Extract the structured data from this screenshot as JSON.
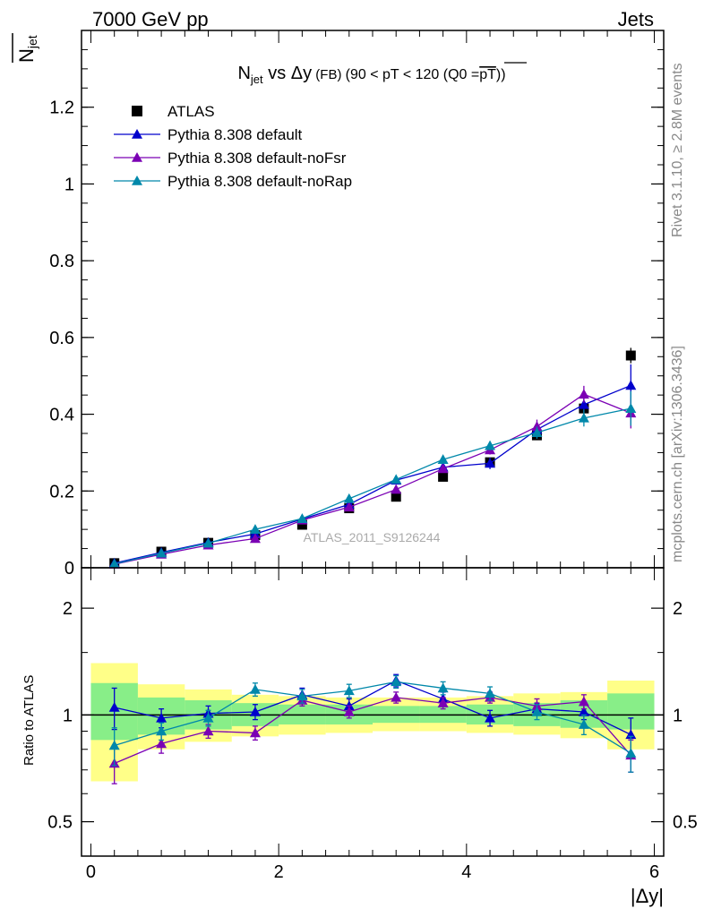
{
  "header": {
    "energy_label": "7000 GeV pp",
    "process_label": "Jets",
    "side_rivet": "Rivet 3.1.10, ≥ 2.8M events",
    "side_source": "mcplots.cern.ch [arXiv:1306.3436]",
    "watermark": "ATLAS_2011_S9126244"
  },
  "chart_data": [
    {
      "type": "scatter",
      "panel": "main",
      "title_parts": {
        "n": "N",
        "jet_sub": "jet",
        "vs": " vs Δy",
        "fb": " (FB) ",
        "cut": "(90 < pT < 120 (Q0 =",
        "pt": "pT",
        "close": "))"
      },
      "ylabel_parts": {
        "n": "N",
        "jet_sub": "jet"
      },
      "ylim": [
        0,
        1.4
      ],
      "yticks": [
        "0",
        "0.2",
        "0.4",
        "0.6",
        "0.8",
        "1",
        "1.2"
      ],
      "x": [
        0.25,
        0.75,
        1.25,
        1.75,
        2.25,
        2.75,
        3.25,
        3.75,
        4.25,
        4.75,
        5.25,
        5.75
      ],
      "xlim": [
        -0.1,
        6.1
      ],
      "legend_position": "top-left",
      "series": [
        {
          "name": "ATLAS",
          "color": "#000000",
          "marker": "square",
          "values": [
            0.012,
            0.042,
            0.065,
            0.085,
            0.112,
            0.155,
            0.185,
            0.237,
            0.275,
            0.345,
            0.415,
            0.553
          ],
          "errors": [
            0.001,
            0.002,
            0.003,
            0.004,
            0.004,
            0.005,
            0.006,
            0.008,
            0.01,
            0.012,
            0.015,
            0.02
          ]
        },
        {
          "name": "Pythia 8.308 default",
          "color": "#0000cc",
          "marker": "triangle",
          "values": [
            0.012,
            0.04,
            0.066,
            0.088,
            0.127,
            0.165,
            0.228,
            0.262,
            0.272,
            0.36,
            0.425,
            0.475
          ],
          "errors": [
            0.001,
            0.003,
            0.004,
            0.005,
            0.005,
            0.007,
            0.007,
            0.01,
            0.015,
            0.018,
            0.02,
            0.055
          ]
        },
        {
          "name": "Pythia 8.308 default-noFsr",
          "color": "#7b00b4",
          "marker": "triangle",
          "values": [
            0.009,
            0.035,
            0.059,
            0.076,
            0.124,
            0.158,
            0.204,
            0.258,
            0.307,
            0.368,
            0.452,
            0.403
          ],
          "errors": [
            0.001,
            0.003,
            0.004,
            0.005,
            0.005,
            0.006,
            0.007,
            0.009,
            0.012,
            0.018,
            0.022,
            0.04
          ]
        },
        {
          "name": "Pythia 8.308 default-noRap",
          "color": "#0088aa",
          "marker": "triangle",
          "values": [
            0.01,
            0.038,
            0.064,
            0.1,
            0.128,
            0.18,
            0.23,
            0.282,
            0.318,
            0.352,
            0.39,
            0.415
          ],
          "errors": [
            0.001,
            0.003,
            0.004,
            0.004,
            0.005,
            0.006,
            0.007,
            0.01,
            0.012,
            0.016,
            0.022,
            0.045
          ]
        }
      ]
    },
    {
      "type": "scatter",
      "panel": "ratio",
      "ylabel": "Ratio to ATLAS",
      "xlabel": "|Δy|",
      "log_y": true,
      "ylim": [
        0.4,
        2.6
      ],
      "yticks": [
        "0.5",
        "1",
        "2"
      ],
      "xticks": [
        "0",
        "2",
        "4",
        "6"
      ],
      "x": [
        0.25,
        0.75,
        1.25,
        1.75,
        2.25,
        2.75,
        3.25,
        3.75,
        4.25,
        4.75,
        5.25,
        5.75
      ],
      "band_edges": [
        0,
        0.5,
        1,
        1.5,
        2,
        2.5,
        3,
        3.5,
        4,
        4.5,
        5,
        5.5,
        6
      ],
      "band_yellow": [
        [
          0.65,
          1.4
        ],
        [
          0.8,
          1.22
        ],
        [
          0.84,
          1.18
        ],
        [
          0.87,
          1.14
        ],
        [
          0.88,
          1.13
        ],
        [
          0.89,
          1.12
        ],
        [
          0.9,
          1.12
        ],
        [
          0.9,
          1.12
        ],
        [
          0.89,
          1.13
        ],
        [
          0.88,
          1.15
        ],
        [
          0.86,
          1.16
        ],
        [
          0.8,
          1.25
        ]
      ],
      "band_green": [
        [
          0.85,
          1.23
        ],
        [
          0.88,
          1.12
        ],
        [
          0.91,
          1.1
        ],
        [
          0.93,
          1.08
        ],
        [
          0.94,
          1.07
        ],
        [
          0.94,
          1.07
        ],
        [
          0.95,
          1.06
        ],
        [
          0.95,
          1.06
        ],
        [
          0.94,
          1.07
        ],
        [
          0.93,
          1.08
        ],
        [
          0.92,
          1.1
        ],
        [
          0.91,
          1.15
        ]
      ],
      "series": [
        {
          "name": "Pythia 8.308 default",
          "color": "#0000cc",
          "values": [
            1.05,
            0.98,
            1.01,
            1.02,
            1.14,
            1.06,
            1.25,
            1.11,
            0.98,
            1.04,
            1.02,
            0.88
          ],
          "errors": [
            0.14,
            0.06,
            0.05,
            0.05,
            0.05,
            0.05,
            0.05,
            0.05,
            0.05,
            0.04,
            0.05,
            0.1
          ]
        },
        {
          "name": "Pythia 8.308 default-noFsr",
          "color": "#7b00b4",
          "values": [
            0.73,
            0.83,
            0.9,
            0.89,
            1.1,
            1.02,
            1.12,
            1.08,
            1.12,
            1.06,
            1.09,
            0.77
          ],
          "errors": [
            0.09,
            0.05,
            0.04,
            0.04,
            0.04,
            0.04,
            0.04,
            0.04,
            0.04,
            0.05,
            0.05,
            0.08
          ]
        },
        {
          "name": "Pythia 8.308 default-noRap",
          "color": "#0088aa",
          "values": [
            0.82,
            0.9,
            0.98,
            1.18,
            1.13,
            1.17,
            1.24,
            1.19,
            1.15,
            1.02,
            0.94,
            0.78
          ],
          "errors": [
            0.1,
            0.05,
            0.05,
            0.05,
            0.05,
            0.05,
            0.05,
            0.05,
            0.05,
            0.05,
            0.06,
            0.09
          ]
        }
      ]
    }
  ]
}
